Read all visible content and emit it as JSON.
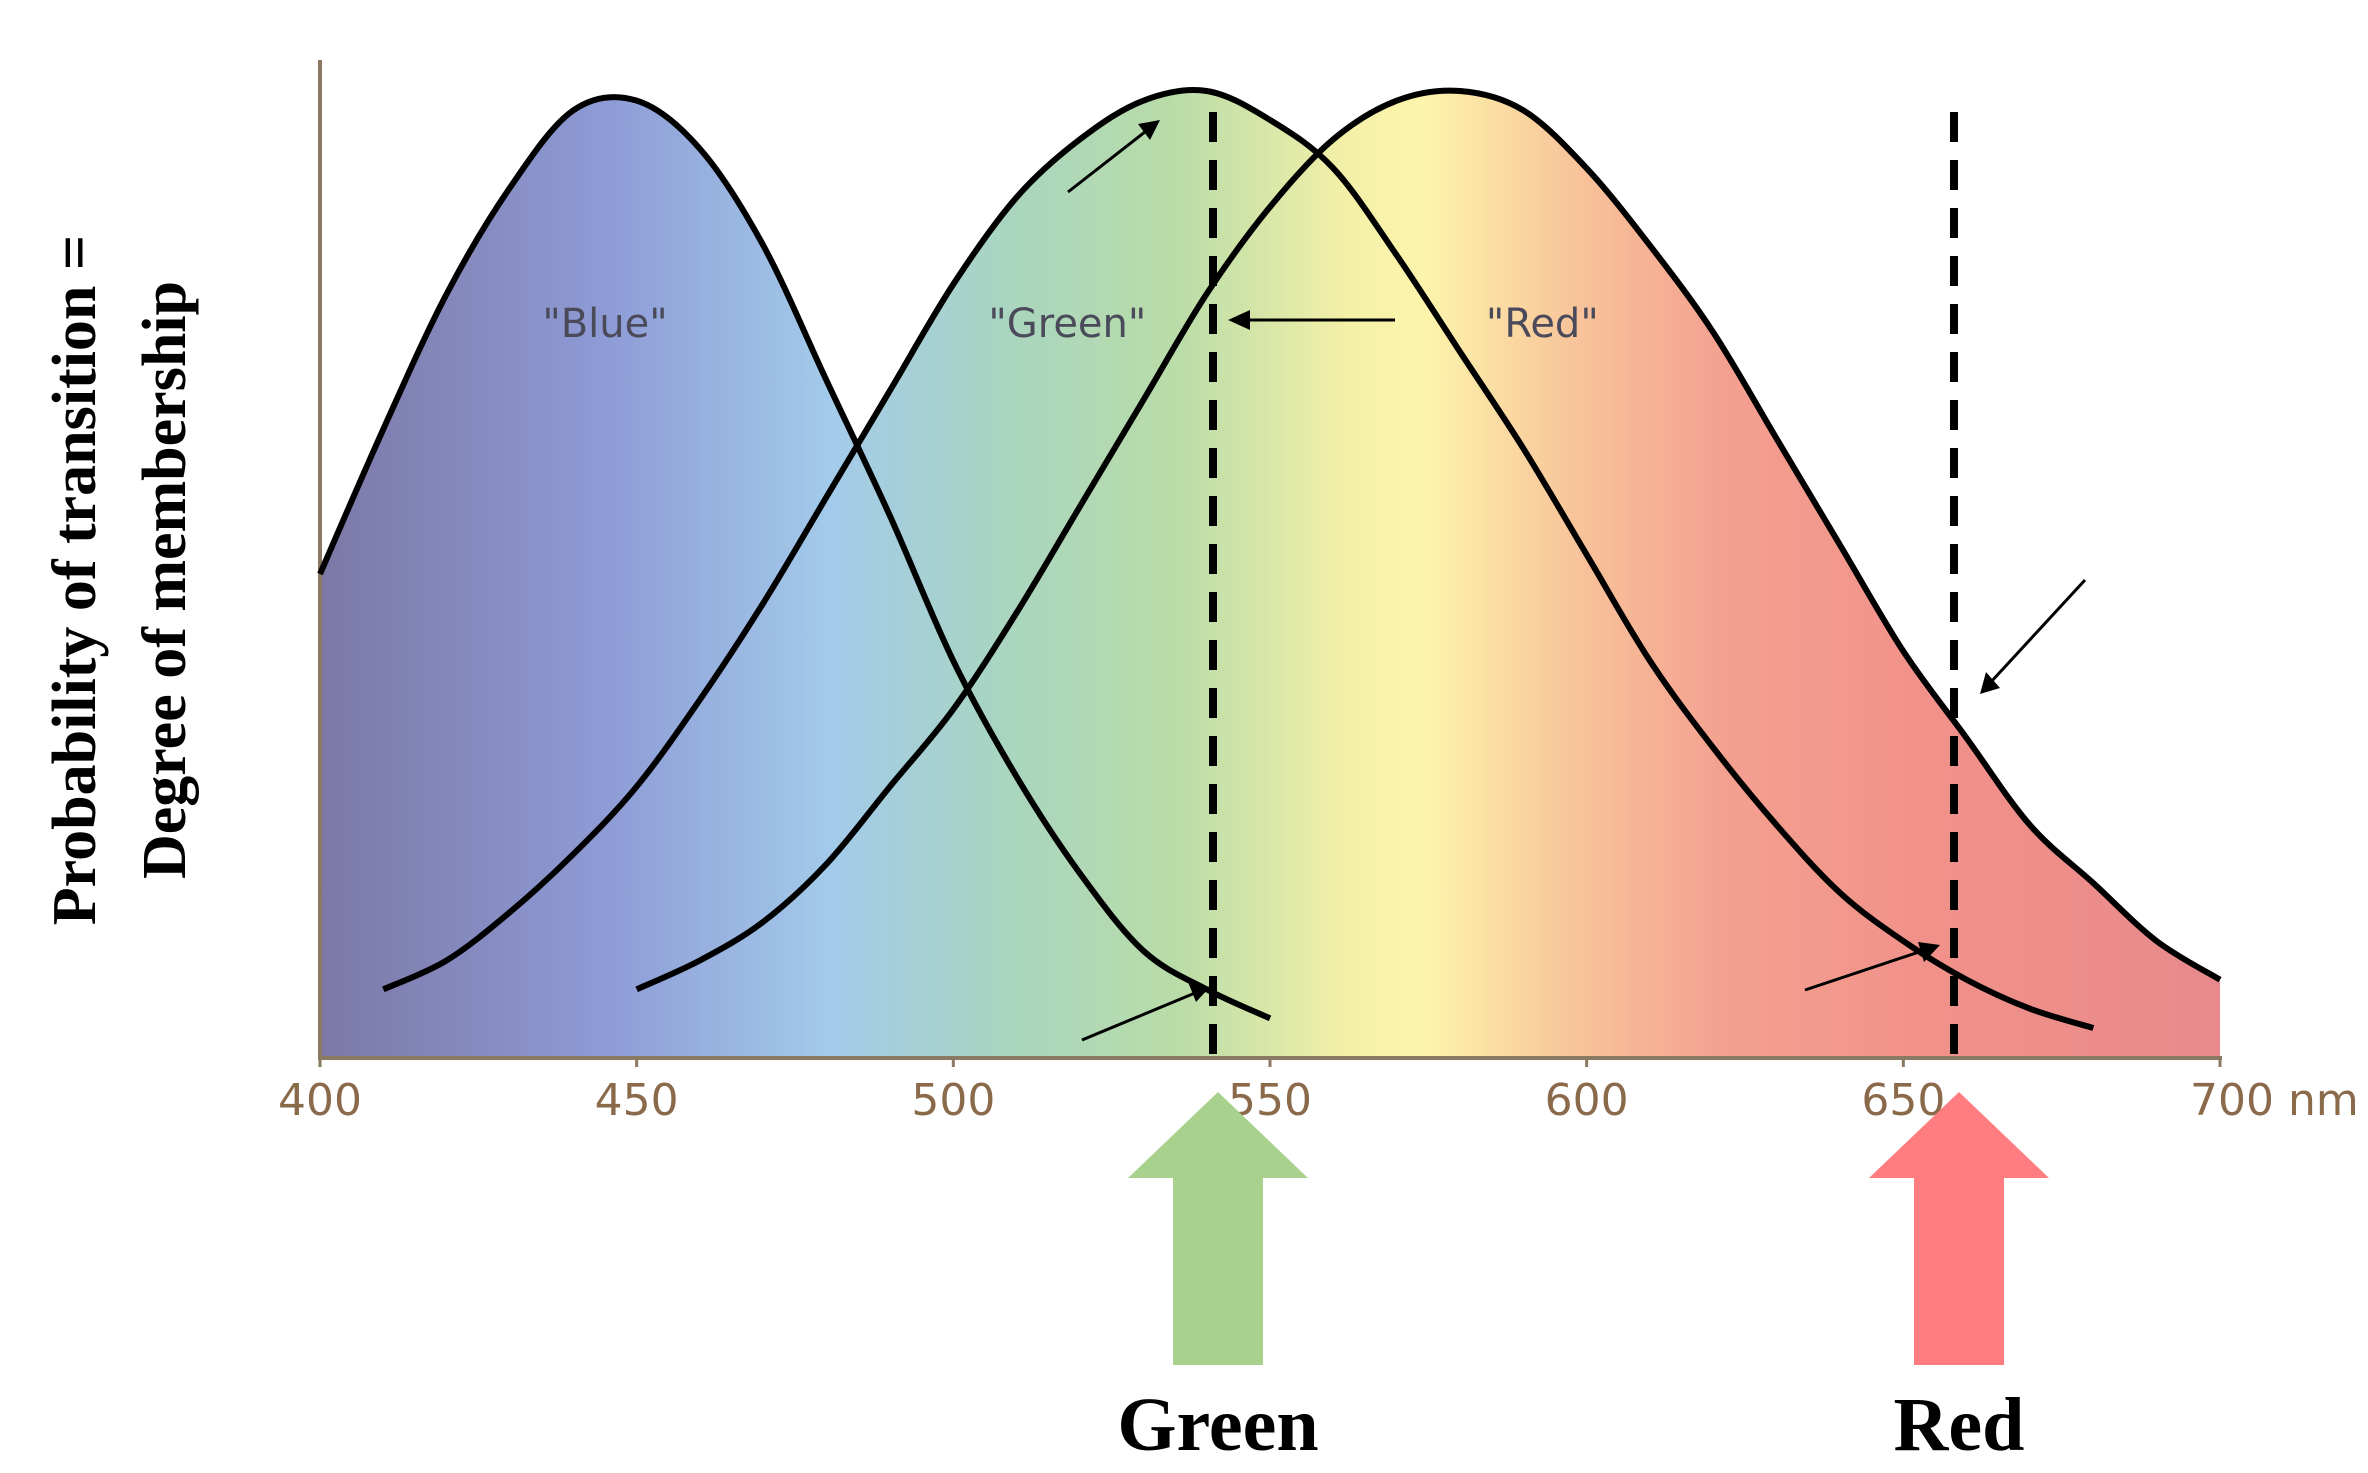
{
  "chart_data": {
    "type": "line",
    "ylabel": [
      "Probability of transition =",
      "Degree of membership"
    ],
    "x": [
      400,
      410,
      420,
      430,
      440,
      450,
      460,
      470,
      480,
      490,
      500,
      510,
      520,
      530,
      540,
      550,
      560,
      570,
      580,
      590,
      600,
      610,
      620,
      630,
      640,
      650,
      660,
      670,
      680,
      690,
      700
    ],
    "series": [
      {
        "name": "\"Blue\"",
        "color": "#000000",
        "values": [
          0.5,
          0.65,
          0.79,
          0.9,
          0.98,
          0.99,
          0.94,
          0.84,
          0.7,
          0.56,
          0.41,
          0.29,
          0.19,
          0.11,
          0.07,
          0.04,
          null,
          null,
          null,
          null,
          null,
          null,
          null,
          null,
          null,
          null,
          null,
          null,
          null,
          null,
          null
        ]
      },
      {
        "name": "\"Green\"",
        "color": "#000000",
        "values": [
          null,
          0.07,
          0.1,
          0.15,
          0.21,
          0.28,
          0.37,
          0.47,
          0.58,
          0.69,
          0.8,
          0.89,
          0.95,
          0.99,
          1.0,
          0.97,
          0.92,
          0.83,
          0.73,
          0.63,
          0.52,
          0.41,
          0.32,
          0.24,
          0.17,
          0.12,
          0.08,
          0.05,
          0.03,
          null,
          null
        ]
      },
      {
        "name": "\"Red\"",
        "color": "#000000",
        "values": [
          null,
          null,
          null,
          null,
          null,
          0.07,
          0.1,
          0.14,
          0.2,
          0.28,
          0.36,
          0.46,
          0.57,
          0.68,
          0.79,
          0.88,
          0.95,
          0.99,
          1.0,
          0.98,
          0.92,
          0.84,
          0.75,
          0.64,
          0.53,
          0.42,
          0.33,
          0.24,
          0.18,
          0.12,
          0.08
        ]
      }
    ],
    "markers": [
      {
        "x": 541,
        "label": "Green",
        "color": "#a9d18e"
      },
      {
        "x": 658,
        "label": "Red",
        "color": "#ff7c80"
      }
    ],
    "xlim": [
      400,
      700
    ],
    "xticks": [
      400,
      450,
      500,
      550,
      600,
      650,
      {
        "value": 700,
        "label": "700 nm"
      }
    ],
    "ylim": [
      0,
      1
    ]
  }
}
